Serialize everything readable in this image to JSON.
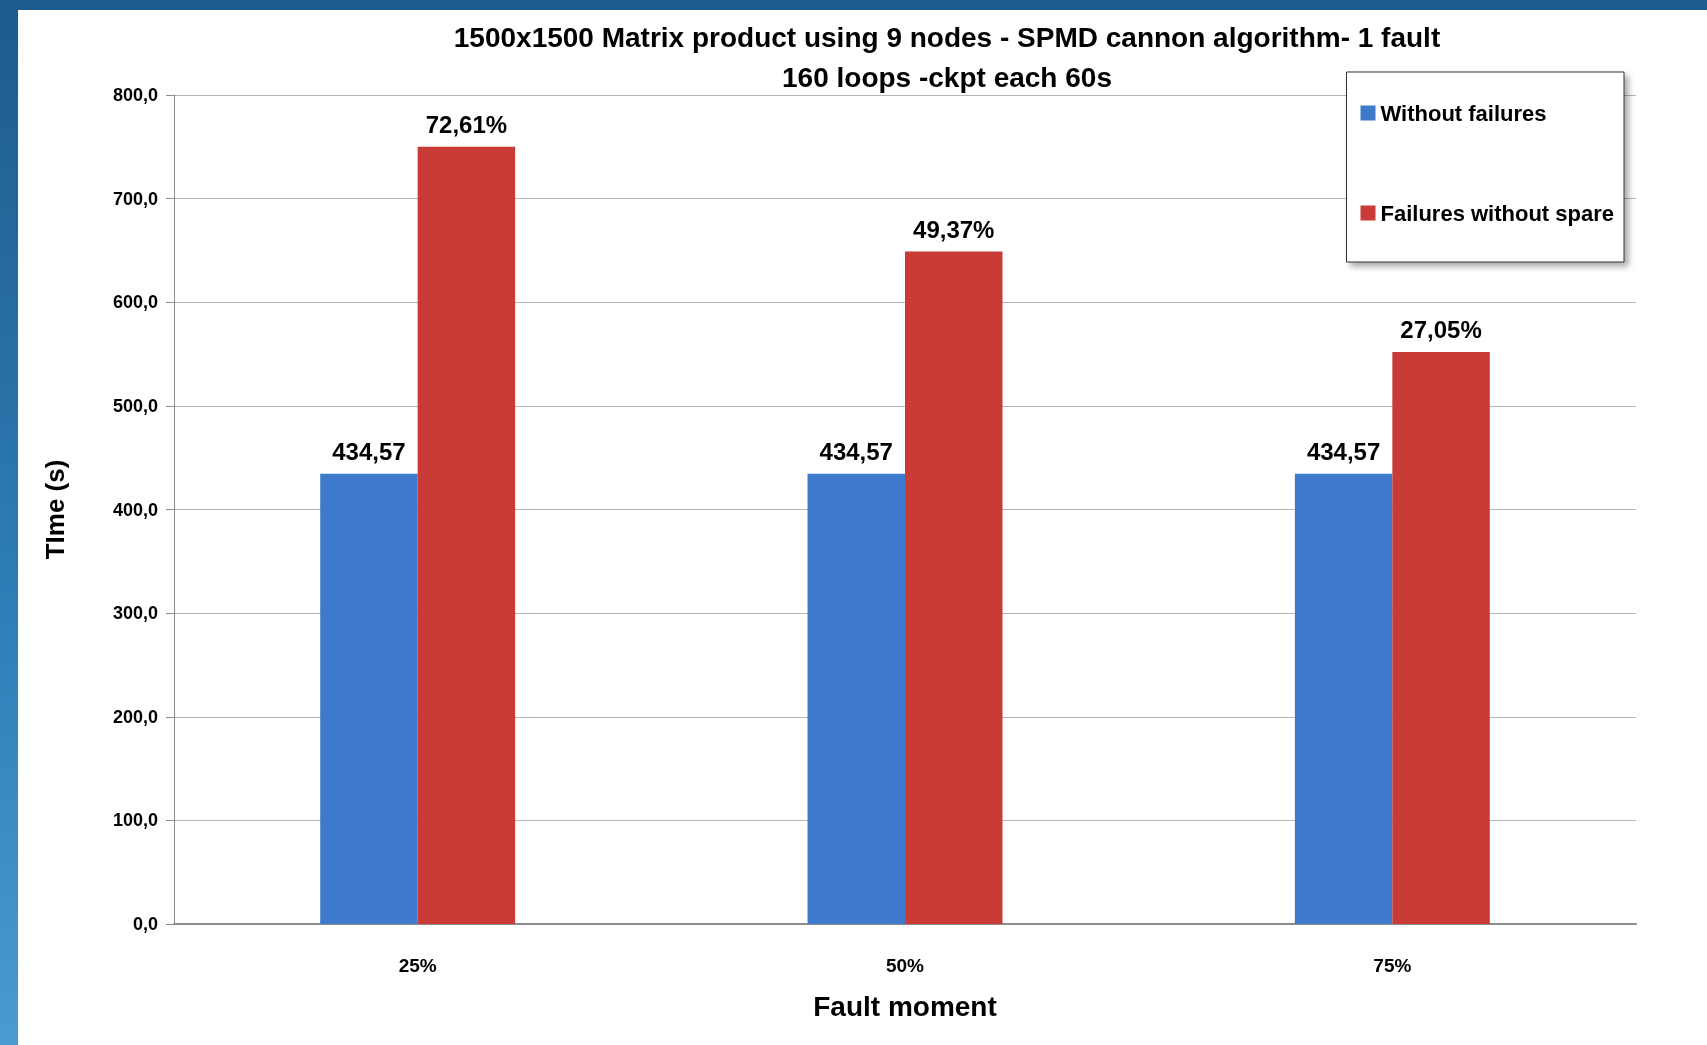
{
  "chart_data": {
    "type": "bar",
    "title": "1500x1500 Matrix product using 9 nodes - SPMD cannon algorithm- 1 fault",
    "subtitle": "160 loops -ckpt each 60s",
    "xlabel": "Fault moment",
    "ylabel": "TIme (s)",
    "categories": [
      "25%",
      "50%",
      "75%"
    ],
    "series": [
      {
        "name": "Without failures",
        "color": "#3d7acb",
        "values": [
          434.57,
          434.57,
          434.57
        ],
        "value_labels": [
          "434,57",
          "434,57",
          "434,57"
        ]
      },
      {
        "name": "Failures without spare",
        "color": "#c93b37",
        "values": [
          750,
          649,
          552
        ]
      }
    ],
    "annotations": [
      {
        "text": "72,61%",
        "x": "25%",
        "y": 750
      },
      {
        "text": "49,37%",
        "x": "50%",
        "y": 649
      },
      {
        "text": "27,05%",
        "x": "75%",
        "y": 552
      }
    ],
    "ylim": [
      0,
      800
    ],
    "yticks": [
      {
        "value": 0,
        "label": "0,0"
      },
      {
        "value": 100,
        "label": "100,0"
      },
      {
        "value": 200,
        "label": "200,0"
      },
      {
        "value": 300,
        "label": "300,0"
      },
      {
        "value": 400,
        "label": "400,0"
      },
      {
        "value": 500,
        "label": "500,0"
      },
      {
        "value": 600,
        "label": "600,0"
      },
      {
        "value": 700,
        "label": "700,0"
      },
      {
        "value": 800,
        "label": "800,0"
      }
    ],
    "grid": "y",
    "legend": "top right"
  }
}
